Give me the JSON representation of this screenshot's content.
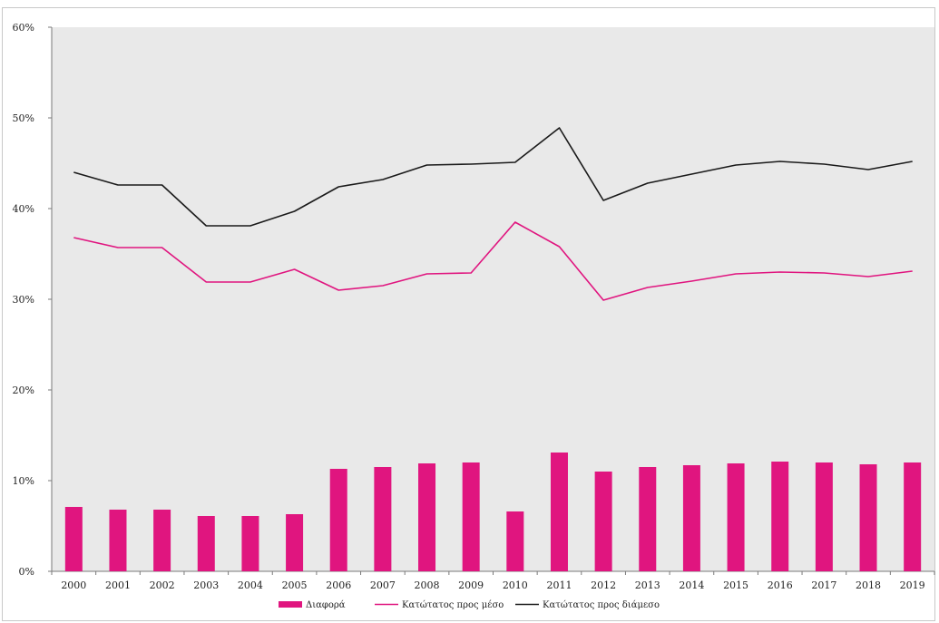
{
  "chart_data": {
    "type": "bar",
    "categories": [
      "2000",
      "2001",
      "2002",
      "2003",
      "2004",
      "2005",
      "2006",
      "2007",
      "2008",
      "2009",
      "2010",
      "2011",
      "2012",
      "2013",
      "2014",
      "2015",
      "2016",
      "2017",
      "2018",
      "2019"
    ],
    "ylim": [
      0,
      60
    ],
    "yticks": [
      0,
      10,
      20,
      30,
      40,
      50,
      60
    ],
    "ytick_labels": [
      "0%",
      "10%",
      "20%",
      "30%",
      "40%",
      "50%",
      "60%"
    ],
    "grid": false,
    "plot_background": "#e9e9e9",
    "legend_position": "bottom",
    "series": [
      {
        "name": "Διαφορά",
        "kind": "bar",
        "color": "#e0157f",
        "values": [
          7.1,
          6.8,
          6.8,
          6.1,
          6.1,
          6.3,
          11.3,
          11.5,
          11.9,
          12.0,
          6.6,
          13.1,
          11.0,
          11.5,
          11.7,
          11.9,
          12.1,
          12.0,
          11.8,
          12.0
        ]
      },
      {
        "name": "Κατώτατος προς μέσο",
        "kind": "line",
        "color": "#e0157f",
        "values": [
          36.8,
          35.7,
          35.7,
          31.9,
          31.9,
          33.3,
          31.0,
          31.5,
          32.8,
          32.9,
          38.5,
          35.8,
          29.9,
          31.3,
          32.0,
          32.8,
          33.0,
          32.9,
          32.5,
          33.1
        ]
      },
      {
        "name": "Κατώτατος προς διάμεσο",
        "kind": "line",
        "color": "#1a1a1a",
        "values": [
          44.0,
          42.6,
          42.6,
          38.1,
          38.1,
          39.7,
          42.4,
          43.2,
          44.8,
          44.9,
          45.1,
          48.9,
          40.9,
          42.8,
          43.8,
          44.8,
          45.2,
          44.9,
          44.3,
          45.2
        ]
      }
    ]
  }
}
